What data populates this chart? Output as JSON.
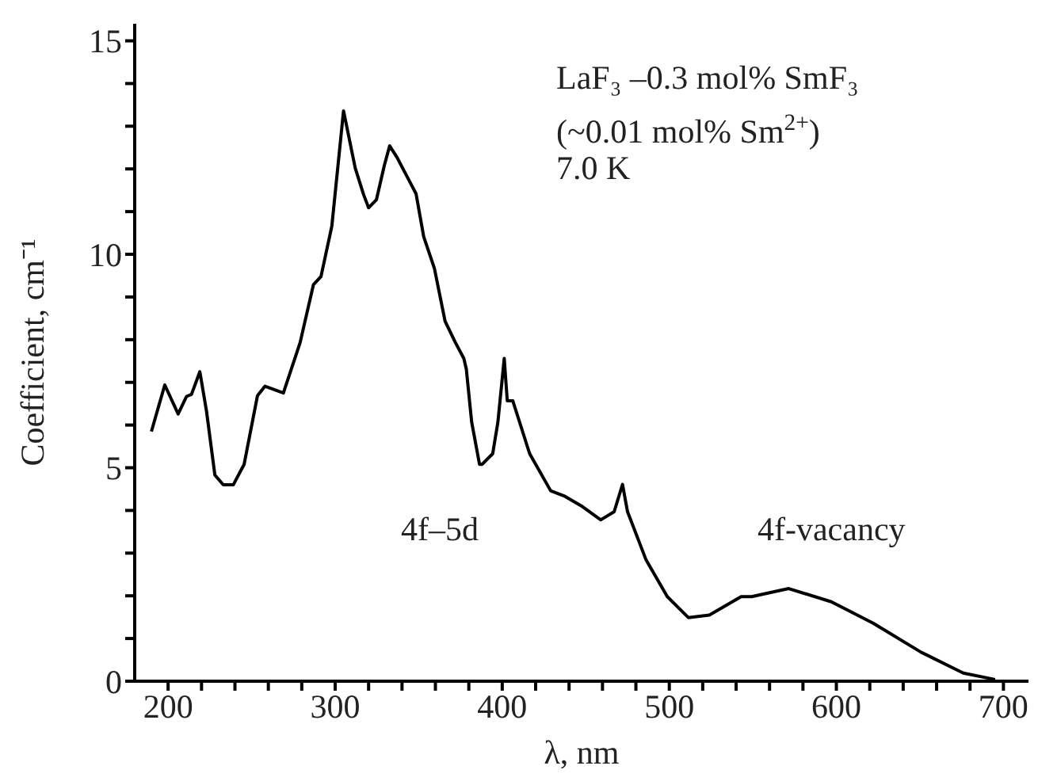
{
  "chart_data": {
    "type": "line",
    "xlabel": "λ, nm",
    "ylabel": "Coefficient, cm⁻¹",
    "annotations": [
      "LaF₃ –0.3 mol% SmF₃",
      "(~0.01 mol% Sm$^{2+}$)",
      "7.0 K",
      "4f–5d",
      "4f-vacancy"
    ],
    "xlim": [
      180,
      715
    ],
    "ylim": [
      0,
      15.4
    ],
    "xticks": [
      200,
      {
        "value": 220,
        "label": null
      },
      {
        "value": 240,
        "label": null
      },
      {
        "value": 260,
        "label": null
      },
      {
        "value": 280,
        "label": null
      },
      300,
      {
        "value": 320,
        "label": null
      },
      {
        "value": 340,
        "label": null
      },
      {
        "value": 360,
        "label": null
      },
      {
        "value": 380,
        "label": null
      },
      400,
      {
        "value": 420,
        "label": null
      },
      {
        "value": 440,
        "label": null
      },
      {
        "value": 460,
        "label": null
      },
      {
        "value": 480,
        "label": null
      },
      500,
      {
        "value": 520,
        "label": null
      },
      {
        "value": 540,
        "label": null
      },
      {
        "value": 560,
        "label": null
      },
      {
        "value": 580,
        "label": null
      },
      600,
      {
        "value": 620,
        "label": null
      },
      {
        "value": 640,
        "label": null
      },
      {
        "value": 660,
        "label": null
      },
      {
        "value": 680,
        "label": null
      },
      700
    ],
    "yticks": [
      0,
      {
        "value": 1,
        "label": null
      },
      {
        "value": 2,
        "label": null
      },
      {
        "value": 3,
        "label": null
      },
      {
        "value": 4,
        "label": null
      },
      5,
      {
        "value": 6,
        "label": null
      },
      {
        "value": 7,
        "label": null
      },
      {
        "value": 8,
        "label": null
      },
      {
        "value": 9,
        "label": null
      },
      10,
      {
        "value": 11,
        "label": null
      },
      {
        "value": 12,
        "label": null
      },
      {
        "value": 13,
        "label": null
      },
      {
        "value": 14,
        "label": null
      },
      15
    ],
    "grid": false,
    "legend": false,
    "marker": "none",
    "line_style": "solid",
    "series": [
      {
        "color": "#000000",
        "x": [
          190,
          198,
          206,
          211,
          214,
          219,
          223,
          228,
          233,
          239,
          245.5,
          253.5,
          258,
          269,
          279,
          287,
          291.5,
          298,
          305,
          312,
          317,
          320,
          324.7,
          329.4,
          332.6,
          337,
          343.7,
          348.4,
          353,
          359.4,
          365.8,
          372,
          377,
          378.5,
          381.7,
          386.4,
          388,
          394.3,
          397.4,
          401.2,
          403,
          406.3,
          416.4,
          429,
          437,
          448,
          459,
          467,
          472,
          475,
          486,
          498.8,
          511.4,
          524,
          543,
          549.3,
          571.5,
          597,
          622,
          650.7,
          676,
          695
        ],
        "values": [
          5.85,
          6.94,
          6.26,
          6.67,
          6.72,
          7.25,
          6.32,
          4.83,
          4.6,
          4.6,
          5.08,
          6.69,
          6.91,
          6.75,
          7.93,
          9.29,
          9.48,
          10.66,
          13.36,
          12.02,
          11.4,
          11.09,
          11.28,
          12.08,
          12.54,
          12.27,
          11.77,
          11.42,
          10.41,
          9.67,
          8.43,
          7.93,
          7.56,
          7.31,
          6.07,
          5.08,
          5.08,
          5.33,
          6.07,
          7.56,
          6.57,
          6.57,
          5.33,
          4.46,
          4.34,
          4.09,
          3.78,
          3.97,
          4.61,
          3.97,
          2.85,
          1.98,
          1.49,
          1.55,
          1.98,
          1.98,
          2.17,
          1.86,
          1.36,
          0.68,
          0.19,
          0.04
        ]
      }
    ]
  }
}
